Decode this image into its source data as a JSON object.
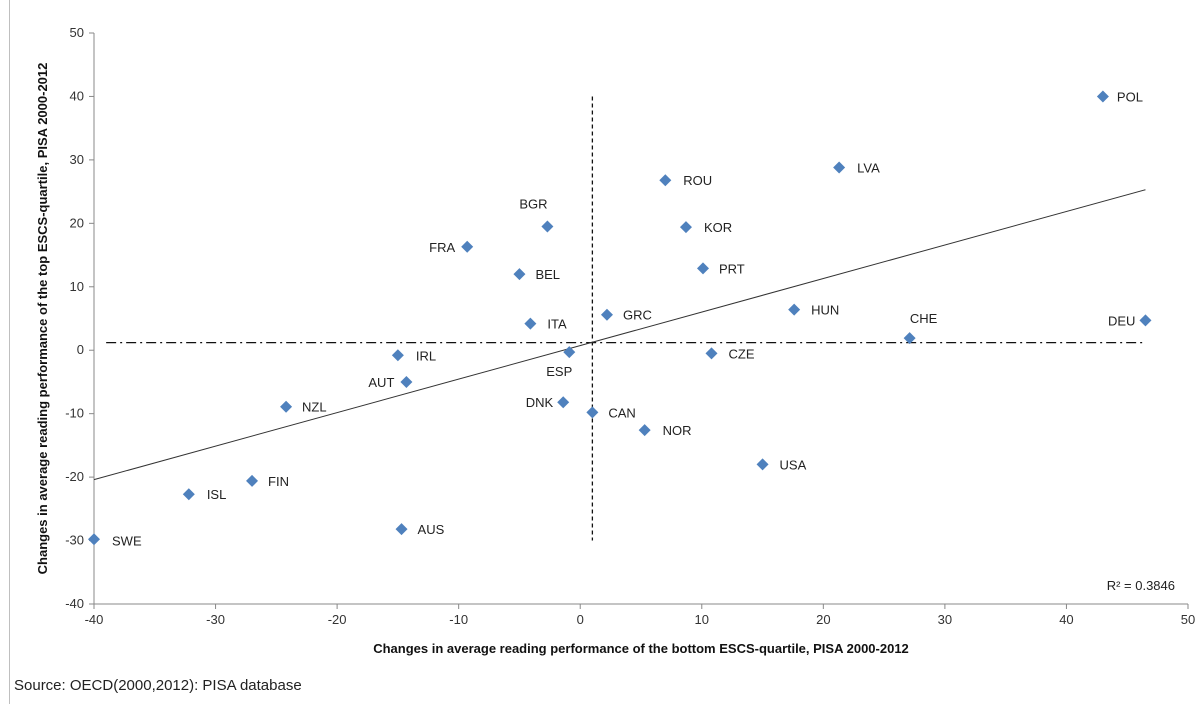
{
  "chart_data": {
    "type": "scatter",
    "xlabel": "Changes in average reading performance of the bottom ESCS-quartile, PISA 2000-2012",
    "ylabel": "Changes in average reading performance of the top ESCS-quartile, PISA 2000-2012",
    "xlim": [
      -40,
      50
    ],
    "ylim": [
      -40,
      50
    ],
    "xticks": [
      -40,
      -30,
      -20,
      -10,
      0,
      10,
      20,
      30,
      40,
      50
    ],
    "yticks": [
      -40,
      -30,
      -20,
      -10,
      0,
      10,
      20,
      30,
      40,
      50
    ],
    "marker_color": "#4f81bd",
    "points": [
      {
        "label": "POL",
        "x": 43.0,
        "y": 40.0
      },
      {
        "label": "LVA",
        "x": 21.3,
        "y": 28.8
      },
      {
        "label": "ROU",
        "x": 7.0,
        "y": 26.8
      },
      {
        "label": "BGR",
        "x": -2.7,
        "y": 19.5
      },
      {
        "label": "KOR",
        "x": 8.7,
        "y": 19.4
      },
      {
        "label": "FRA",
        "x": -9.3,
        "y": 16.3
      },
      {
        "label": "PRT",
        "x": 10.1,
        "y": 12.9
      },
      {
        "label": "BEL",
        "x": -5.0,
        "y": 12.0
      },
      {
        "label": "HUN",
        "x": 17.6,
        "y": 6.4
      },
      {
        "label": "GRC",
        "x": 2.2,
        "y": 5.6
      },
      {
        "label": "DEU",
        "x": 46.5,
        "y": 4.7
      },
      {
        "label": "ITA",
        "x": -4.1,
        "y": 4.2
      },
      {
        "label": "CHE",
        "x": 27.1,
        "y": 1.9
      },
      {
        "label": "ESP",
        "x": -0.9,
        "y": -0.3
      },
      {
        "label": "CZE",
        "x": 10.8,
        "y": -0.5
      },
      {
        "label": "IRL",
        "x": -15.0,
        "y": -0.8
      },
      {
        "label": "AUT",
        "x": -14.3,
        "y": -5.0
      },
      {
        "label": "DNK",
        "x": -1.4,
        "y": -8.2
      },
      {
        "label": "NZL",
        "x": -24.2,
        "y": -8.9
      },
      {
        "label": "CAN",
        "x": 1.0,
        "y": -9.8
      },
      {
        "label": "NOR",
        "x": 5.3,
        "y": -12.6
      },
      {
        "label": "USA",
        "x": 15.0,
        "y": -18.0
      },
      {
        "label": "FIN",
        "x": -27.0,
        "y": -20.6
      },
      {
        "label": "ISL",
        "x": -32.2,
        "y": -22.7
      },
      {
        "label": "AUS",
        "x": -14.7,
        "y": -28.2
      },
      {
        "label": "SWE",
        "x": -40.0,
        "y": -29.8
      }
    ],
    "trendline": {
      "x": [
        -40,
        46.5
      ],
      "y": [
        -20.4,
        25.3
      ]
    },
    "reference_lines": {
      "x_mean": 1.0,
      "y_mean": 1.2,
      "v_y_range": [
        -30,
        40
      ],
      "h_x_range": [
        -39,
        46.5
      ]
    },
    "annotation": "R² = 0.3846",
    "grid": false
  },
  "source_text": "Source: OECD(2000,2012): PISA database"
}
